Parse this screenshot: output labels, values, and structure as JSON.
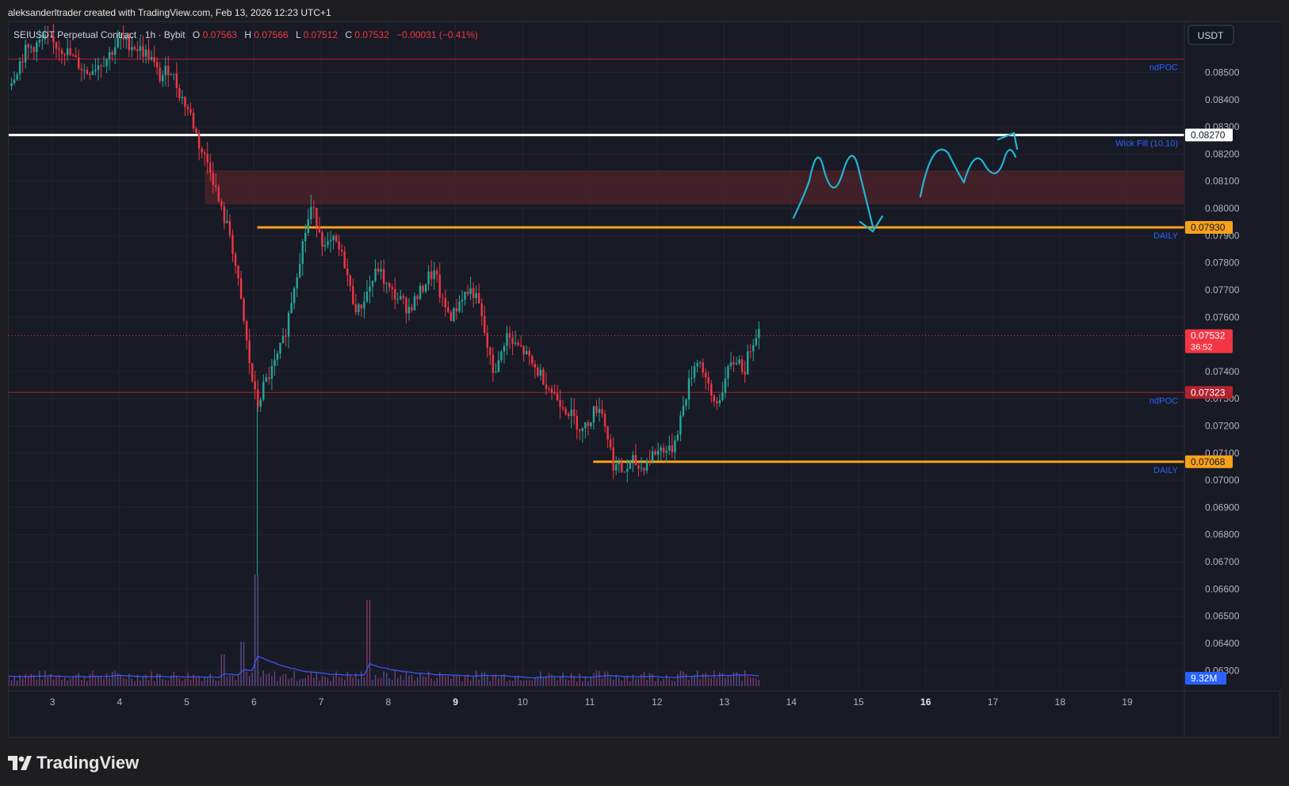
{
  "header": {
    "attribution": "aleksanderltrader created with TradingView.com, Feb 13, 2026 12:23 UTC+1"
  },
  "legend": {
    "symbol": "SEIUSDT Perpetual Contract · 1h · Bybit",
    "o_label": "O",
    "o_value": "0.07563",
    "h_label": "H",
    "h_value": "0.07566",
    "l_label": "L",
    "l_value": "0.07512",
    "c_label": "C",
    "c_value": "0.07532",
    "change": "−0.00031 (−0.41%)"
  },
  "currency_button": "USDT",
  "branding": {
    "logo_text": "TradingView"
  },
  "colors": {
    "background": "#181a25",
    "up_candle": "#26a69a",
    "down_candle": "#f23645",
    "daily_level": "#f7a21b",
    "wick_fill_level": "#ffffff",
    "ndpoc_level": "#b2232f",
    "zone_fill": "#4a2229",
    "annotation_blue": "#1fb6d6",
    "label_blue": "#2962ff",
    "volume_ma": "#3d5afe"
  },
  "chart_data": {
    "type": "candlestick",
    "timeframe": "1h",
    "x_tick_labels": [
      "3",
      "4",
      "5",
      "6",
      "7",
      "8",
      "9",
      "10",
      "11",
      "12",
      "13",
      "14",
      "15",
      "16",
      "17",
      "18",
      "19"
    ],
    "x_range_days": [
      2.35,
      19.85
    ],
    "y_tick_labels": [
      "0.08500",
      "0.08400",
      "0.08300",
      "0.08200",
      "0.08100",
      "0.08000",
      "0.07900",
      "0.07800",
      "0.07700",
      "0.07600",
      "0.07400",
      "0.07300",
      "0.07200",
      "0.07100",
      "0.07000",
      "0.06900",
      "0.06800",
      "0.06700",
      "0.06600",
      "0.06500",
      "0.06400",
      "0.06300"
    ],
    "ylim": [
      0.06225,
      0.08685
    ],
    "price_path": [
      [
        2.35,
        0.0845
      ],
      [
        2.6,
        0.0858
      ],
      [
        2.9,
        0.0862
      ],
      [
        3.2,
        0.0858
      ],
      [
        3.5,
        0.085
      ],
      [
        3.8,
        0.0855
      ],
      [
        4.0,
        0.0862
      ],
      [
        4.2,
        0.086
      ],
      [
        4.45,
        0.0856
      ],
      [
        4.6,
        0.0848
      ],
      [
        4.75,
        0.0852
      ],
      [
        4.9,
        0.0842
      ],
      [
        5.05,
        0.0835
      ],
      [
        5.2,
        0.0822
      ],
      [
        5.35,
        0.0815
      ],
      [
        5.5,
        0.08
      ],
      [
        5.65,
        0.079
      ],
      [
        5.75,
        0.0775
      ],
      [
        5.85,
        0.0758
      ],
      [
        5.95,
        0.074
      ],
      [
        6.05,
        0.0727
      ],
      [
        6.15,
        0.0735
      ],
      [
        6.3,
        0.0742
      ],
      [
        6.45,
        0.0752
      ],
      [
        6.6,
        0.0772
      ],
      [
        6.75,
        0.079
      ],
      [
        6.85,
        0.08
      ],
      [
        6.95,
        0.0795
      ],
      [
        7.05,
        0.0785
      ],
      [
        7.2,
        0.0788
      ],
      [
        7.35,
        0.078
      ],
      [
        7.45,
        0.0768
      ],
      [
        7.55,
        0.0762
      ],
      [
        7.7,
        0.077
      ],
      [
        7.85,
        0.0778
      ],
      [
        8.0,
        0.077
      ],
      [
        8.15,
        0.0767
      ],
      [
        8.3,
        0.0763
      ],
      [
        8.45,
        0.0768
      ],
      [
        8.6,
        0.0775
      ],
      [
        8.7,
        0.0776
      ],
      [
        8.8,
        0.0765
      ],
      [
        8.95,
        0.076
      ],
      [
        9.1,
        0.0768
      ],
      [
        9.25,
        0.077
      ],
      [
        9.35,
        0.0764
      ],
      [
        9.45,
        0.0752
      ],
      [
        9.55,
        0.074
      ],
      [
        9.65,
        0.0743
      ],
      [
        9.75,
        0.0754
      ],
      [
        9.85,
        0.075
      ],
      [
        10.0,
        0.0748
      ],
      [
        10.15,
        0.0742
      ],
      [
        10.3,
        0.0738
      ],
      [
        10.45,
        0.0732
      ],
      [
        10.6,
        0.0728
      ],
      [
        10.75,
        0.0723
      ],
      [
        10.9,
        0.0718
      ],
      [
        11.05,
        0.0725
      ],
      [
        11.15,
        0.0728
      ],
      [
        11.25,
        0.0718
      ],
      [
        11.35,
        0.0706
      ],
      [
        11.5,
        0.0703
      ],
      [
        11.65,
        0.0707
      ],
      [
        11.75,
        0.0704
      ],
      [
        11.85,
        0.0707
      ],
      [
        11.95,
        0.071
      ],
      [
        12.1,
        0.0712
      ],
      [
        12.2,
        0.071
      ],
      [
        12.3,
        0.0718
      ],
      [
        12.4,
        0.0728
      ],
      [
        12.5,
        0.0738
      ],
      [
        12.6,
        0.0745
      ],
      [
        12.7,
        0.074
      ],
      [
        12.8,
        0.073
      ],
      [
        12.9,
        0.0728
      ],
      [
        13.0,
        0.0736
      ],
      [
        13.1,
        0.0742
      ],
      [
        13.2,
        0.0745
      ],
      [
        13.3,
        0.074
      ],
      [
        13.4,
        0.075
      ],
      [
        13.5,
        0.0756
      ],
      [
        13.55,
        0.07532
      ]
    ],
    "last_price": {
      "value": "0.07532",
      "countdown": "36:52",
      "price": 0.07532
    },
    "horizontal_levels": [
      {
        "name": "ndPOC",
        "label": "ndPOC",
        "price": 0.08549,
        "color": "#b2232f",
        "from_day": 2.35,
        "axis_label": ""
      },
      {
        "name": "wick-fill",
        "label": "Wick Fill (10.10)",
        "price": 0.0827,
        "color": "#ffffff",
        "from_day": 2.35,
        "axis_label": "0.08270"
      },
      {
        "name": "daily-upper",
        "label": "DAILY",
        "price": 0.0793,
        "color": "#f7a21b",
        "from_day": 6.05,
        "axis_label": "0.07930"
      },
      {
        "name": "ndPOC-lower",
        "label": "ndPOC",
        "price": 0.07323,
        "color": "#b2232f",
        "from_day": 2.35,
        "axis_label": "0.07323"
      },
      {
        "name": "daily-lower",
        "label": "DAILY",
        "price": 0.07068,
        "color": "#f7a21b",
        "from_day": 11.05,
        "axis_label": "0.07068"
      }
    ],
    "zone": {
      "price_top": 0.0814,
      "price_bottom": 0.08015,
      "from_day": 5.27
    },
    "volume": {
      "last_label": "9.32M",
      "spikes": [
        {
          "day": 5.85,
          "level": 0.35
        },
        {
          "day": 6.05,
          "level": 0.88
        },
        {
          "day": 7.72,
          "level": 0.68
        },
        {
          "day": 5.55,
          "level": 0.25
        }
      ]
    }
  }
}
